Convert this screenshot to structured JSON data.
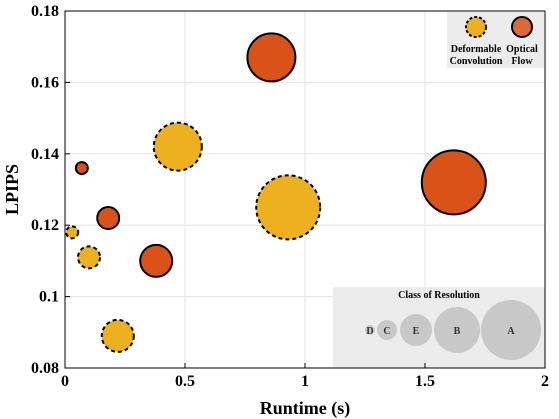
{
  "chart_data": {
    "type": "scatter",
    "title": "",
    "xlabel": "Runtime (s)",
    "ylabel": "LPIPS",
    "xlim": [
      0,
      2
    ],
    "ylim": [
      0.08,
      0.18
    ],
    "xticks": [
      "0",
      "0.5",
      "1",
      "1.5",
      "2"
    ],
    "yticks": [
      "0.08",
      "0.1",
      "0.12",
      "0.14",
      "0.16",
      "0.18"
    ],
    "grid": true,
    "colors": {
      "deformable": "#EDB120",
      "optical": "#D95319"
    },
    "legend": {
      "placement": "top-right",
      "entries": [
        {
          "key": "deformable",
          "lines": [
            "Deformable",
            "Convolution"
          ]
        },
        {
          "key": "optical",
          "lines": [
            "Optical",
            "Flow"
          ]
        }
      ]
    },
    "resolution_legend": {
      "title": "Class of Resolution",
      "placement": "bottom-right",
      "classes": [
        "D",
        "C",
        "E",
        "B",
        "A"
      ],
      "relative_size": [
        1,
        1.8,
        2.7,
        3.7,
        5.2
      ]
    },
    "series": [
      {
        "name": "Deformable Convolution",
        "key": "deformable",
        "points": [
          {
            "x": 0.03,
            "y": 0.118,
            "size": 1
          },
          {
            "x": 0.1,
            "y": 0.111,
            "size": 2
          },
          {
            "x": 0.22,
            "y": 0.089,
            "size": 3
          },
          {
            "x": 0.47,
            "y": 0.142,
            "size": 4
          },
          {
            "x": 0.93,
            "y": 0.125,
            "size": 5
          }
        ]
      },
      {
        "name": "Optical Flow",
        "key": "optical",
        "points": [
          {
            "x": 0.07,
            "y": 0.136,
            "size": 1
          },
          {
            "x": 0.18,
            "y": 0.122,
            "size": 2
          },
          {
            "x": 0.38,
            "y": 0.11,
            "size": 3
          },
          {
            "x": 0.86,
            "y": 0.167,
            "size": 4
          },
          {
            "x": 1.62,
            "y": 0.132,
            "size": 5
          }
        ]
      }
    ]
  }
}
